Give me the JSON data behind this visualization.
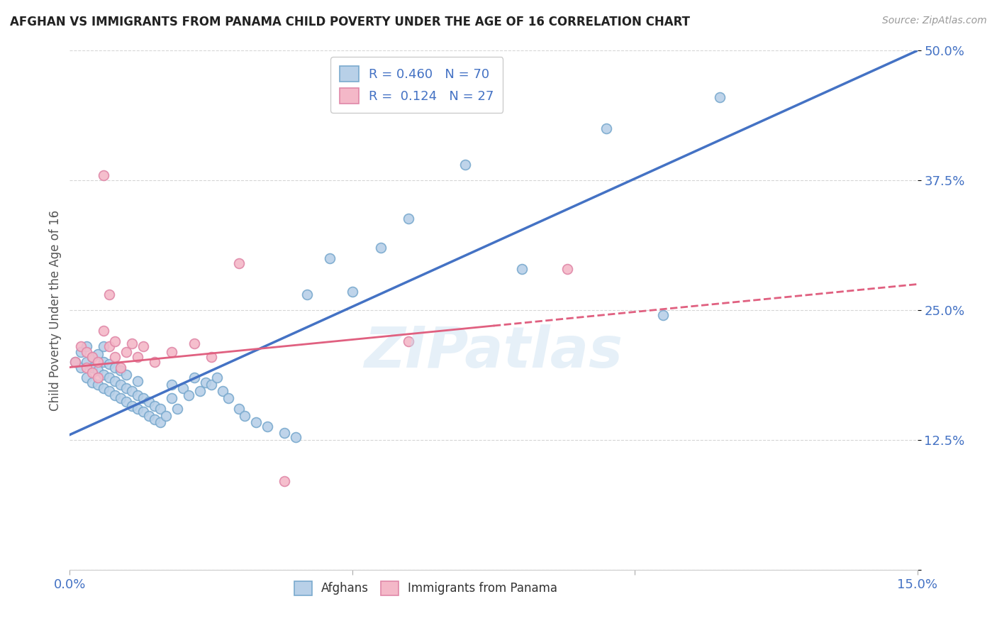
{
  "title": "AFGHAN VS IMMIGRANTS FROM PANAMA CHILD POVERTY UNDER THE AGE OF 16 CORRELATION CHART",
  "source": "Source: ZipAtlas.com",
  "ylabel": "Child Poverty Under the Age of 16",
  "xlim": [
    0.0,
    0.15
  ],
  "ylim": [
    0.0,
    0.5
  ],
  "xticks": [
    0.0,
    0.05,
    0.1,
    0.15
  ],
  "xticklabels": [
    "0.0%",
    "",
    "",
    "15.0%"
  ],
  "yticks": [
    0.0,
    0.125,
    0.25,
    0.375,
    0.5
  ],
  "yticklabels": [
    "",
    "12.5%",
    "25.0%",
    "37.5%",
    "50.0%"
  ],
  "legend_r1": "R = 0.460",
  "legend_n1": "N = 70",
  "legend_r2": "R =  0.124",
  "legend_n2": "N = 27",
  "afghans_color": "#b8d0e8",
  "afghans_edge_color": "#7aaace",
  "panama_color": "#f4b8c8",
  "panama_edge_color": "#e088a8",
  "afghan_line_color": "#4472c4",
  "panama_line_color": "#e06080",
  "watermark": "ZIPatlas",
  "afghan_line_x0": 0.0,
  "afghan_line_y0": 0.13,
  "afghan_line_x1": 0.15,
  "afghan_line_y1": 0.5,
  "panama_line_solid_x0": 0.0,
  "panama_line_solid_y0": 0.195,
  "panama_line_solid_x1": 0.075,
  "panama_line_solid_y1": 0.235,
  "panama_line_dash_x0": 0.075,
  "panama_line_dash_y0": 0.235,
  "panama_line_dash_x1": 0.15,
  "panama_line_dash_y1": 0.275,
  "afghans_x": [
    0.001,
    0.002,
    0.002,
    0.003,
    0.003,
    0.003,
    0.004,
    0.004,
    0.004,
    0.005,
    0.005,
    0.005,
    0.006,
    0.006,
    0.006,
    0.006,
    0.007,
    0.007,
    0.007,
    0.008,
    0.008,
    0.008,
    0.009,
    0.009,
    0.009,
    0.01,
    0.01,
    0.01,
    0.011,
    0.011,
    0.012,
    0.012,
    0.012,
    0.013,
    0.013,
    0.014,
    0.014,
    0.015,
    0.015,
    0.016,
    0.016,
    0.017,
    0.018,
    0.018,
    0.019,
    0.02,
    0.021,
    0.022,
    0.023,
    0.024,
    0.025,
    0.026,
    0.027,
    0.028,
    0.03,
    0.031,
    0.033,
    0.035,
    0.038,
    0.04,
    0.042,
    0.046,
    0.05,
    0.055,
    0.06,
    0.07,
    0.08,
    0.095,
    0.105,
    0.115
  ],
  "afghans_y": [
    0.2,
    0.195,
    0.21,
    0.185,
    0.2,
    0.215,
    0.18,
    0.195,
    0.205,
    0.178,
    0.192,
    0.208,
    0.175,
    0.188,
    0.2,
    0.215,
    0.172,
    0.185,
    0.198,
    0.168,
    0.182,
    0.195,
    0.165,
    0.178,
    0.192,
    0.162,
    0.175,
    0.188,
    0.158,
    0.172,
    0.155,
    0.168,
    0.182,
    0.152,
    0.165,
    0.148,
    0.162,
    0.145,
    0.158,
    0.142,
    0.155,
    0.148,
    0.178,
    0.165,
    0.155,
    0.175,
    0.168,
    0.185,
    0.172,
    0.18,
    0.178,
    0.185,
    0.172,
    0.165,
    0.155,
    0.148,
    0.142,
    0.138,
    0.132,
    0.128,
    0.265,
    0.3,
    0.268,
    0.31,
    0.338,
    0.39,
    0.29,
    0.425,
    0.245,
    0.455
  ],
  "panama_x": [
    0.001,
    0.002,
    0.003,
    0.003,
    0.004,
    0.004,
    0.005,
    0.005,
    0.006,
    0.006,
    0.007,
    0.007,
    0.008,
    0.008,
    0.009,
    0.01,
    0.011,
    0.012,
    0.013,
    0.015,
    0.018,
    0.022,
    0.025,
    0.03,
    0.038,
    0.06,
    0.088
  ],
  "panama_y": [
    0.2,
    0.215,
    0.195,
    0.21,
    0.19,
    0.205,
    0.185,
    0.2,
    0.23,
    0.38,
    0.215,
    0.265,
    0.205,
    0.22,
    0.195,
    0.21,
    0.218,
    0.205,
    0.215,
    0.2,
    0.21,
    0.218,
    0.205,
    0.295,
    0.085,
    0.22,
    0.29
  ]
}
